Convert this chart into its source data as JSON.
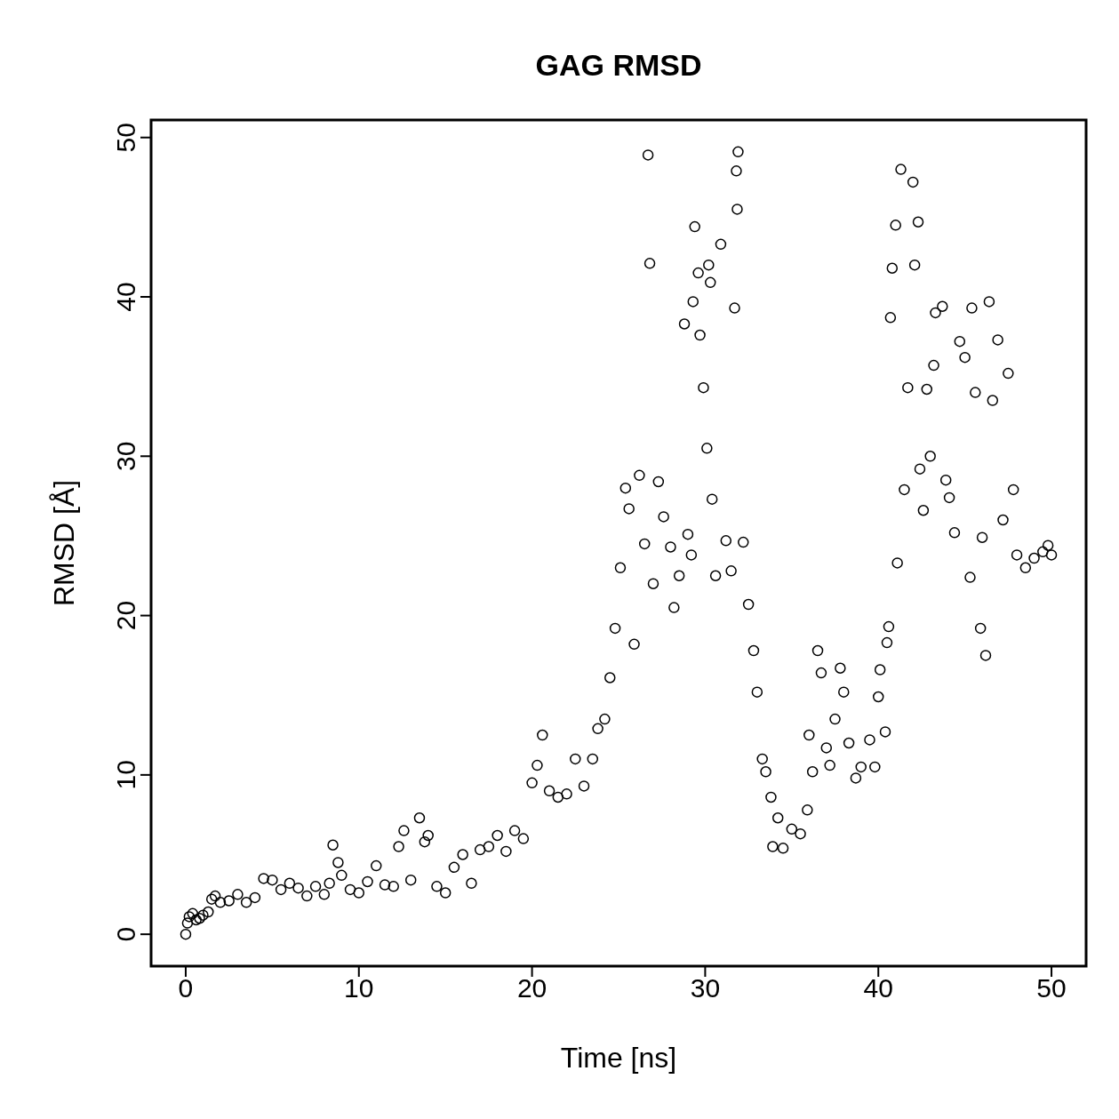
{
  "chart_data": {
    "type": "scatter",
    "title": "GAG RMSD",
    "xlabel": "Time [ns]",
    "ylabel": "RMSD [Å]",
    "xlim": [
      -2,
      52
    ],
    "ylim": [
      -2,
      51.1
    ],
    "xticks": [
      0,
      10,
      20,
      30,
      40,
      50
    ],
    "yticks": [
      0,
      10,
      20,
      30,
      40,
      50
    ],
    "marker": "circle",
    "series": [
      {
        "color": "#000000",
        "x": [
          0,
          0.1,
          0.2,
          0.4,
          0.6,
          0.8,
          1.0,
          1.3,
          1.5,
          1.7,
          2,
          2.5,
          3,
          3.5,
          4,
          4.5,
          5,
          5.5,
          6,
          6.5,
          7,
          7.5,
          8,
          8.3,
          8.5,
          8.8,
          9,
          9.5,
          10,
          10.5,
          11,
          11.5,
          12,
          12.3,
          12.6,
          13,
          13.5,
          13.8,
          14,
          14.5,
          15,
          15.5,
          16,
          16.5,
          17,
          17.5,
          18,
          18.5,
          19,
          19.5,
          20,
          20.3,
          20.6,
          21,
          21.5,
          22,
          22.5,
          23,
          23.5,
          23.8,
          24.2,
          24.5,
          24.8,
          25.1,
          25.4,
          25.6,
          25.9,
          26.2,
          26.5,
          26.7,
          26.8,
          27,
          27.3,
          27.6,
          28,
          28.2,
          28.5,
          28.8,
          29,
          29.2,
          29.3,
          29.4,
          29.6,
          29.7,
          29.9,
          30.1,
          30.2,
          30.3,
          30.4,
          30.6,
          30.9,
          31.2,
          31.5,
          31.7,
          31.8,
          31.85,
          31.9,
          32.2,
          32.5,
          32.8,
          33,
          33.3,
          33.5,
          33.8,
          33.9,
          34.2,
          34.5,
          35,
          35.5,
          35.9,
          36,
          36.2,
          36.5,
          36.7,
          37,
          37.2,
          37.5,
          37.8,
          38,
          38.3,
          38.7,
          39,
          39.5,
          39.8,
          40,
          40.1,
          40.4,
          40.5,
          40.6,
          40.7,
          40.8,
          41,
          41.1,
          41.3,
          41.5,
          41.7,
          42,
          42.1,
          42.3,
          42.4,
          42.6,
          42.8,
          43,
          43.2,
          43.3,
          43.7,
          43.9,
          44.1,
          44.4,
          44.7,
          45,
          45.3,
          45.4,
          45.6,
          45.9,
          46,
          46.2,
          46.4,
          46.6,
          46.9,
          47.2,
          47.5,
          47.8,
          48,
          48.5,
          49,
          49.5,
          49.8,
          50
        ],
        "values": [
          0,
          0.7,
          1.1,
          1.3,
          0.9,
          1.0,
          1.2,
          1.4,
          2.2,
          2.4,
          2.0,
          2.1,
          2.5,
          2.0,
          2.3,
          3.5,
          3.4,
          2.8,
          3.2,
          2.9,
          2.4,
          3.0,
          2.5,
          3.2,
          5.6,
          4.5,
          3.7,
          2.8,
          2.6,
          3.3,
          4.3,
          3.1,
          3.0,
          5.5,
          6.5,
          3.4,
          7.3,
          5.8,
          6.2,
          3.0,
          2.6,
          4.2,
          5.0,
          3.2,
          5.3,
          5.5,
          6.2,
          5.2,
          6.5,
          6.0,
          9.5,
          10.6,
          12.5,
          9.0,
          8.6,
          8.8,
          11.0,
          9.3,
          11.0,
          12.9,
          13.5,
          16.1,
          19.2,
          23.0,
          28.0,
          26.7,
          18.2,
          28.8,
          24.5,
          48.9,
          42.1,
          22.0,
          28.4,
          26.2,
          24.3,
          20.5,
          22.5,
          38.3,
          25.1,
          23.8,
          39.7,
          44.4,
          41.5,
          37.6,
          34.3,
          30.5,
          42.0,
          40.9,
          27.3,
          22.5,
          43.3,
          24.7,
          22.8,
          39.3,
          47.9,
          45.5,
          49.1,
          24.6,
          20.7,
          17.8,
          15.2,
          11.0,
          10.2,
          8.6,
          5.5,
          7.3,
          5.4,
          6.6,
          6.3,
          7.8,
          12.5,
          10.2,
          17.8,
          16.4,
          11.7,
          10.6,
          13.5,
          16.7,
          15.2,
          12.0,
          9.8,
          10.5,
          12.2,
          10.5,
          14.9,
          16.6,
          12.7,
          18.3,
          19.3,
          38.7,
          41.8,
          44.5,
          23.3,
          48.0,
          27.9,
          34.3,
          47.2,
          42.0,
          44.7,
          29.2,
          26.6,
          34.2,
          30.0,
          35.7,
          39.0,
          39.4,
          28.5,
          27.4,
          25.2,
          37.2,
          36.2,
          22.4,
          39.3,
          34.0,
          19.2,
          24.9,
          17.5,
          39.7,
          33.5,
          37.3,
          26.0,
          35.2,
          27.9,
          23.8,
          23.0,
          23.6,
          24.0,
          24.4,
          23.8
        ]
      }
    ]
  }
}
